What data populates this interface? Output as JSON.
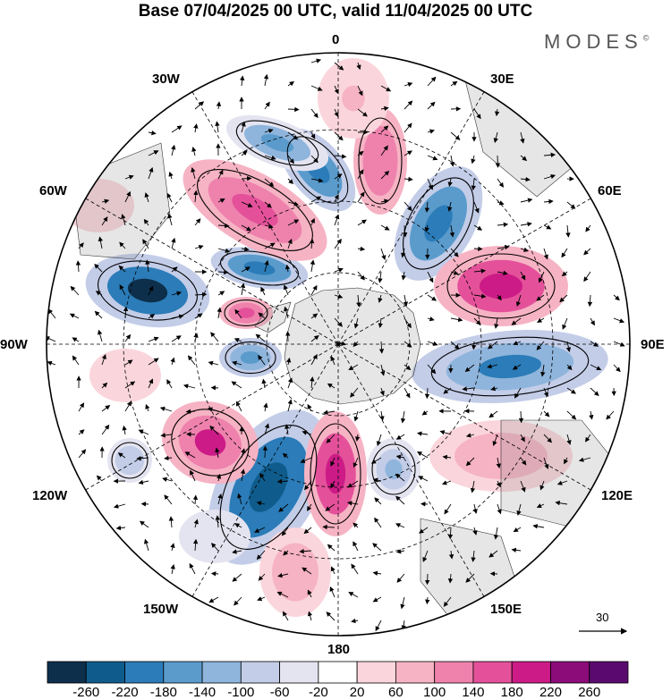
{
  "title": "Base 07/04/2025 00 UTC, valid 11/04/2025 00 UTC",
  "brand": "MODES",
  "brand_mark": "©",
  "longitude_labels": [
    "0",
    "30E",
    "60E",
    "90E",
    "120E",
    "150E",
    "180",
    "150W",
    "120W",
    "90W",
    "60W",
    "30W"
  ],
  "colorbar": {
    "ticks": [
      "-260",
      "-220",
      "-180",
      "-140",
      "-100",
      "-60",
      "-20",
      "20",
      "60",
      "100",
      "140",
      "180",
      "220",
      "260"
    ],
    "colors": [
      "#0d2f4c",
      "#0f5c8c",
      "#2b7cb8",
      "#5a9bcc",
      "#8fb5dc",
      "#c3cde8",
      "#e4e4f1",
      "#ffffff",
      "#fad6dc",
      "#f6b3c4",
      "#ee82ad",
      "#e4519a",
      "#cc1b86",
      "#8c0c79",
      "#5a0a6e"
    ]
  },
  "vector_reference": {
    "label": "30"
  }
}
